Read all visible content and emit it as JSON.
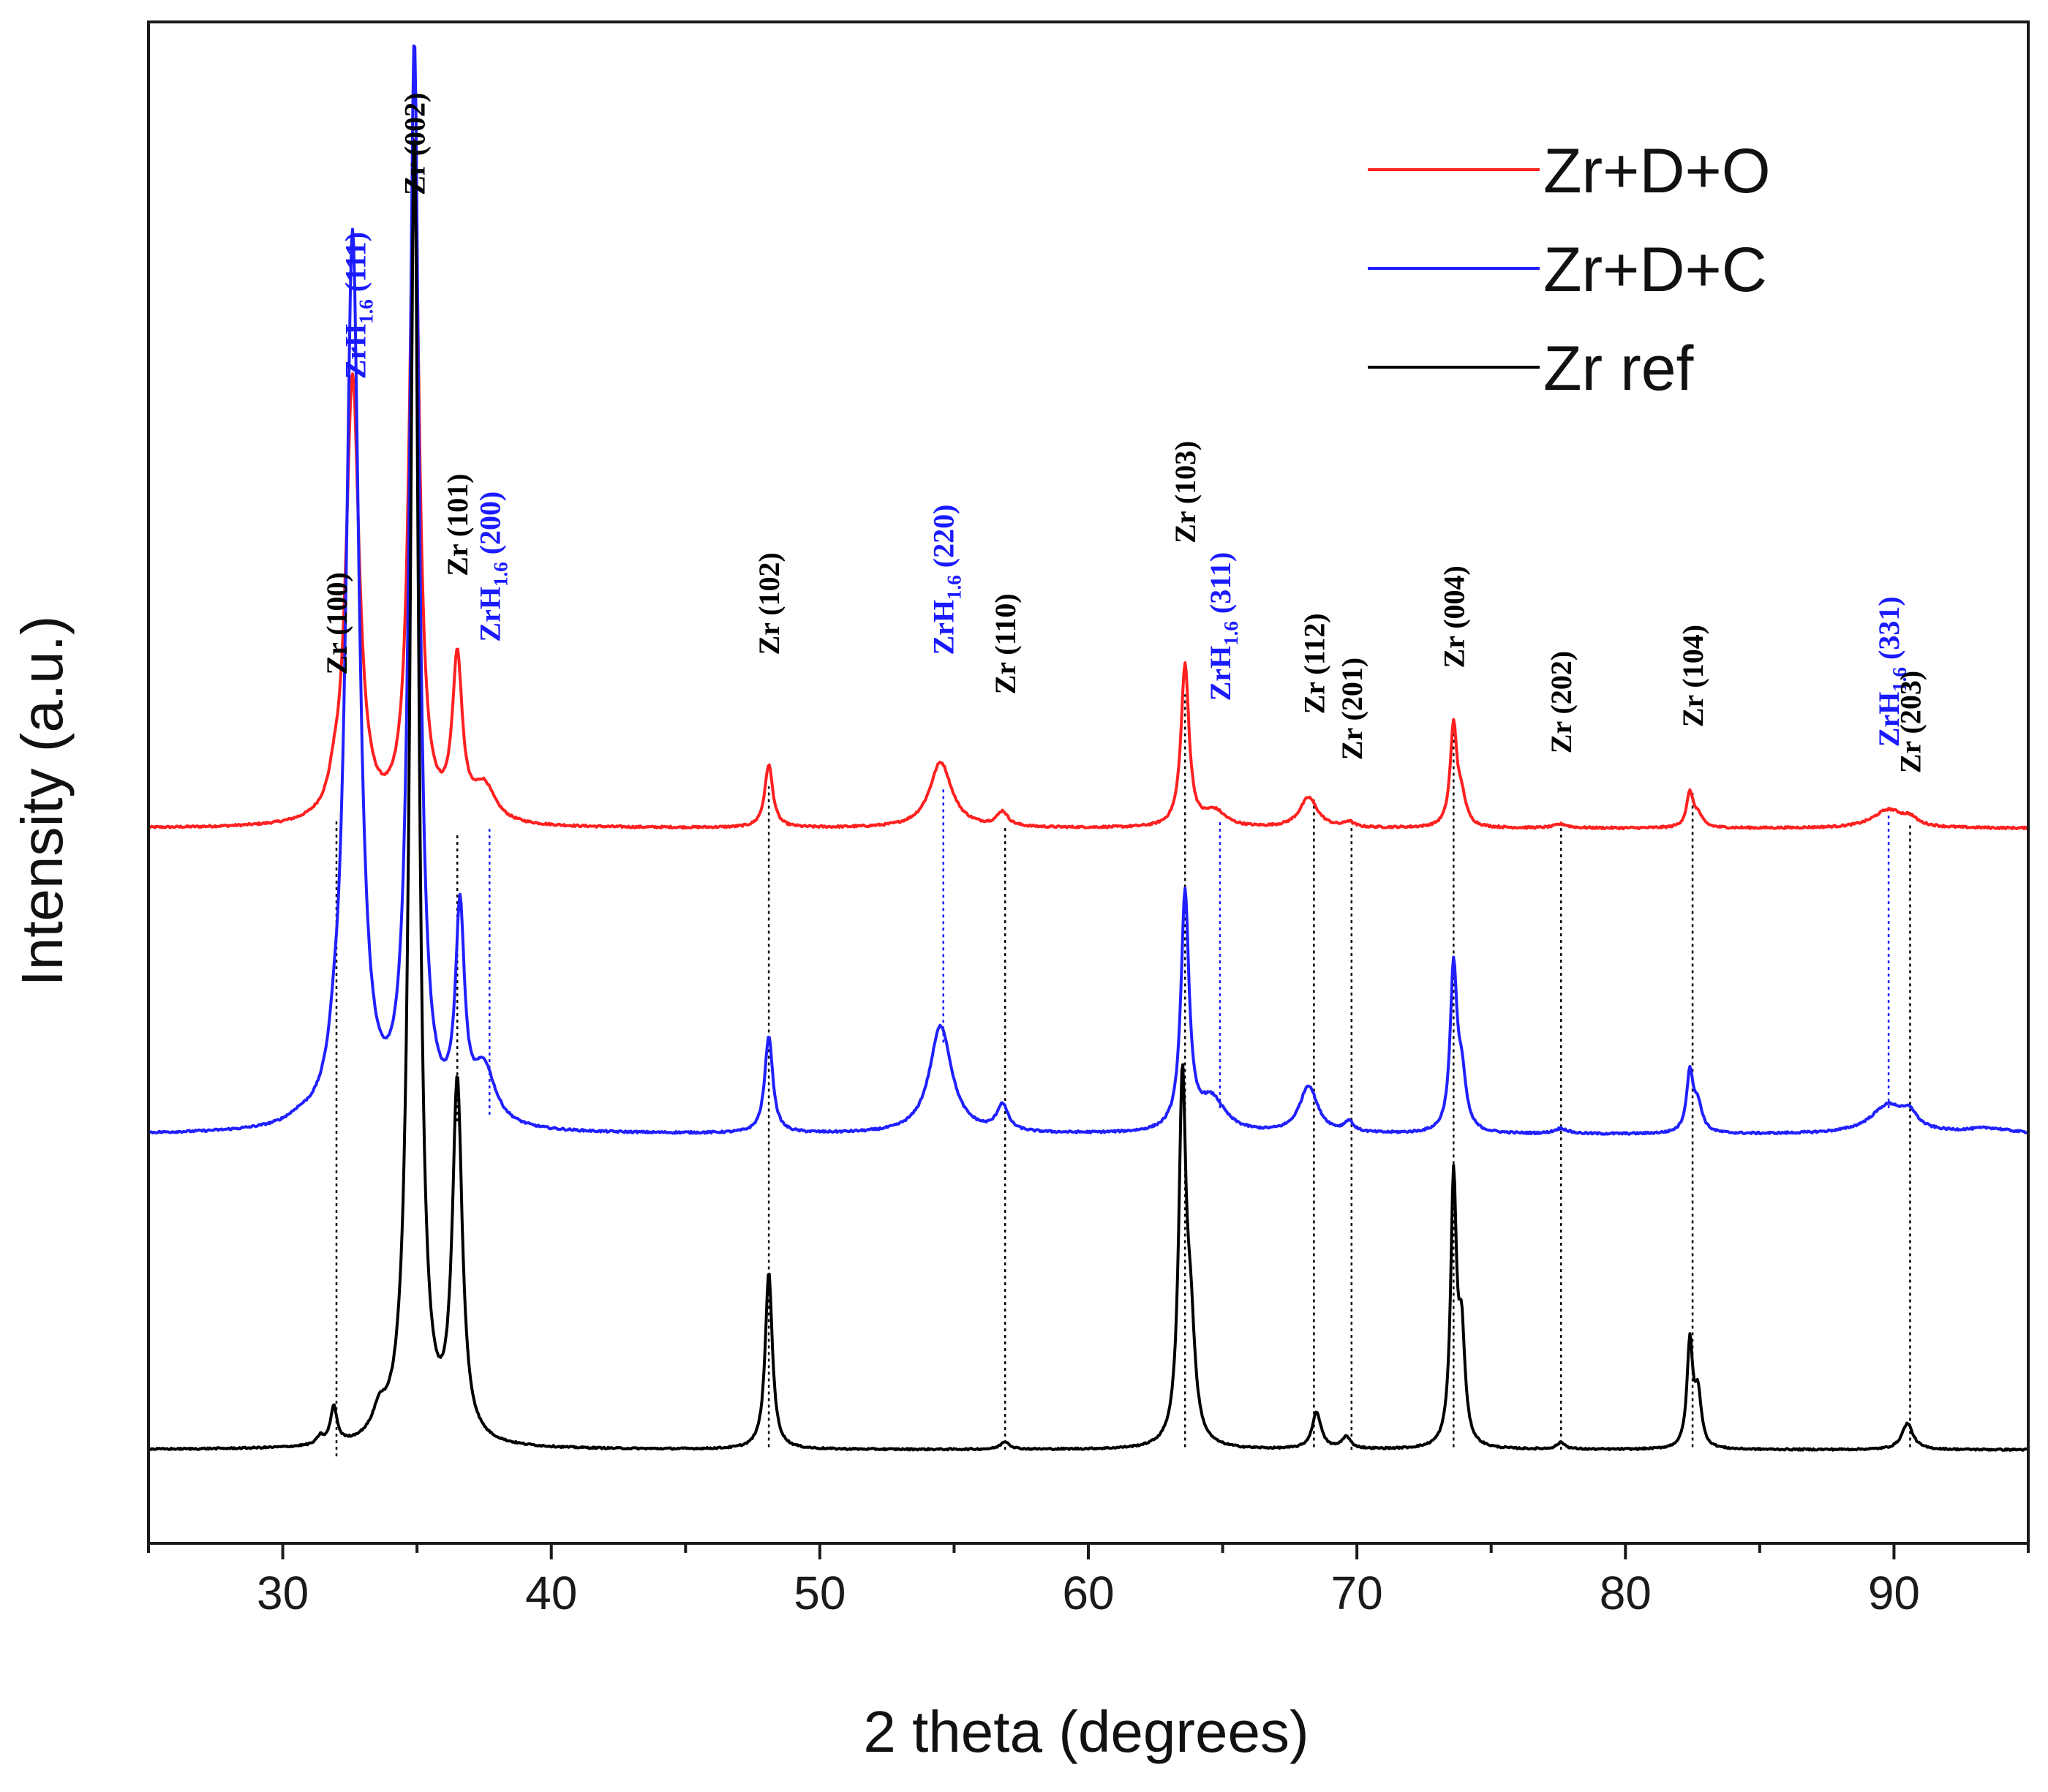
{
  "chart_data": {
    "type": "line",
    "title": "",
    "xlabel": "2 theta (degrees)",
    "ylabel": "Intensity (a.u.)",
    "xlim": [
      25,
      95
    ],
    "ylim": [
      0,
      100
    ],
    "xticks": [
      30,
      40,
      50,
      60,
      70,
      80,
      90
    ],
    "yticks_shown": false,
    "colors": {
      "zr_peak": "#000000",
      "zrh_peak": "#1a1aff"
    },
    "legend": {
      "position": "top-right",
      "entries": [
        {
          "name": "Zr+D+O",
          "color": "#ff2020"
        },
        {
          "name": "Zr+D+C",
          "color": "#2020ff"
        },
        {
          "name": "Zr ref",
          "color": "#000000"
        }
      ]
    },
    "series": [
      {
        "name": "Zr+D+O",
        "color": "#ff2020",
        "baseline": 50.3,
        "noise": 0.15,
        "peaks": [
          [
            31.9,
            1.2,
            0.2
          ],
          [
            32.6,
            34.0,
            0.3
          ],
          [
            34.9,
            52.0,
            0.22
          ],
          [
            36.5,
            12.0,
            0.22
          ],
          [
            37.5,
            2.7,
            0.5
          ],
          [
            48.1,
            4.8,
            0.18
          ],
          [
            54.5,
            5.0,
            0.5
          ],
          [
            56.8,
            1.1,
            0.25
          ],
          [
            63.6,
            12.3,
            0.18
          ],
          [
            64.7,
            1.2,
            0.5
          ],
          [
            68.2,
            2.3,
            0.4
          ],
          [
            69.7,
            0.4,
            0.2
          ],
          [
            73.6,
            7.6,
            0.15
          ],
          [
            73.9,
            2.0,
            0.2
          ],
          [
            77.6,
            0.3,
            0.3
          ],
          [
            82.4,
            2.6,
            0.15
          ],
          [
            82.7,
            0.9,
            0.2
          ],
          [
            89.8,
            1.4,
            0.7
          ],
          [
            90.6,
            0.5,
            0.3
          ]
        ]
      },
      {
        "name": "Zr+D+C",
        "color": "#2020ff",
        "baseline": 27.0,
        "noise": 0.15,
        "peaks": [
          [
            30.6,
            0.4,
            0.5
          ],
          [
            31.9,
            1.5,
            0.2
          ],
          [
            32.6,
            68.0,
            0.3
          ],
          [
            34.9,
            82.0,
            0.22
          ],
          [
            36.6,
            15.5,
            0.2
          ],
          [
            37.5,
            4.2,
            0.5
          ],
          [
            48.1,
            7.4,
            0.18
          ],
          [
            54.5,
            8.2,
            0.5
          ],
          [
            56.8,
            2.0,
            0.25
          ],
          [
            63.6,
            18.0,
            0.18
          ],
          [
            64.6,
            2.5,
            0.6
          ],
          [
            68.2,
            3.6,
            0.4
          ],
          [
            69.7,
            0.8,
            0.2
          ],
          [
            73.6,
            12.2,
            0.15
          ],
          [
            73.9,
            4.0,
            0.2
          ],
          [
            77.6,
            0.4,
            0.3
          ],
          [
            82.4,
            4.5,
            0.15
          ],
          [
            82.7,
            2.0,
            0.2
          ],
          [
            89.8,
            2.2,
            0.8
          ],
          [
            90.6,
            1.0,
            0.3
          ],
          [
            93.5,
            0.4,
            1.0
          ]
        ]
      },
      {
        "name": "Zr ref",
        "color": "#000000",
        "baseline": 3.0,
        "noise": 0.12,
        "peaks": [
          [
            31.4,
            0.6,
            0.15
          ],
          [
            31.9,
            2.8,
            0.15
          ],
          [
            33.6,
            1.8,
            0.3
          ],
          [
            34.9,
            100.0,
            0.2
          ],
          [
            36.5,
            27.0,
            0.22
          ],
          [
            48.1,
            13.5,
            0.16
          ],
          [
            56.9,
            0.6,
            0.2
          ],
          [
            63.5,
            27.0,
            0.16
          ],
          [
            63.8,
            8.0,
            0.2
          ],
          [
            68.5,
            2.8,
            0.2
          ],
          [
            69.6,
            0.9,
            0.2
          ],
          [
            73.6,
            20.0,
            0.13
          ],
          [
            73.9,
            8.0,
            0.15
          ],
          [
            77.6,
            0.5,
            0.2
          ],
          [
            82.4,
            8.0,
            0.13
          ],
          [
            82.7,
            4.0,
            0.15
          ],
          [
            90.5,
            2.0,
            0.25
          ]
        ]
      }
    ],
    "annotations": [
      {
        "text": "Zr (100)",
        "x": 32.0,
        "kind": "zr",
        "label_y": 62.0,
        "line_from_y": 2.5,
        "line_to_y": 51.0
      },
      {
        "main": "ZrH",
        "sub": "1.6",
        "tail": " (111)",
        "x": 32.7,
        "kind": "zrh",
        "label_y": 84.5
      },
      {
        "text": "Zr (002)",
        "x": 34.9,
        "kind": "zr",
        "label_y": 98.5
      },
      {
        "text": "Zr (101)",
        "x": 36.5,
        "kind": "zr",
        "label_y": 69.5,
        "line_from_y": 28.0,
        "line_to_y": 50.0
      },
      {
        "main": "ZrH",
        "sub": "1.6",
        "tail": " (200)",
        "x": 37.7,
        "kind": "zrh",
        "label_y": 64.5,
        "line_from_y": 28.5,
        "line_to_y": 50.5
      },
      {
        "text": "Zr (102)",
        "x": 48.1,
        "kind": "zr",
        "label_y": 63.5,
        "line_from_y": 3.2,
        "line_to_y": 53.5
      },
      {
        "main": "ZrH",
        "sub": "1.6",
        "tail": " (220)",
        "x": 54.6,
        "kind": "zrh",
        "label_y": 63.5,
        "line_from_y": 34.0,
        "line_to_y": 53.5
      },
      {
        "text": "Zr (110)",
        "x": 56.9,
        "kind": "zr",
        "label_y": 60.5,
        "line_from_y": 3.0,
        "line_to_y": 50.5
      },
      {
        "text": "Zr (103)",
        "x": 63.6,
        "kind": "zr",
        "label_y": 72.0,
        "line_from_y": 3.2,
        "line_to_y": 60.5
      },
      {
        "main": "ZrH",
        "sub": "1.6",
        "tail": " (311)",
        "x": 64.9,
        "kind": "zrh",
        "label_y": 60.0,
        "line_from_y": 29.0,
        "line_to_y": 51.0
      },
      {
        "text": "Zr (112)",
        "x": 68.4,
        "kind": "zr",
        "label_y": 59.0,
        "line_from_y": 3.2,
        "line_to_y": 52.5
      },
      {
        "text": "Zr (201)",
        "x": 69.8,
        "kind": "zr",
        "label_y": 55.5,
        "line_from_y": 3.0,
        "line_to_y": 50.6
      },
      {
        "text": "Zr (004)",
        "x": 73.6,
        "kind": "zr",
        "label_y": 62.5,
        "line_from_y": 3.2,
        "line_to_y": 58.0
      },
      {
        "text": "Zr (202)",
        "x": 77.6,
        "kind": "zr",
        "label_y": 56.0,
        "line_from_y": 3.0,
        "line_to_y": 50.6
      },
      {
        "text": "Zr (104)",
        "x": 82.5,
        "kind": "zr",
        "label_y": 58.0,
        "line_from_y": 3.2,
        "line_to_y": 53.0
      },
      {
        "main": "ZrH",
        "sub": "1.6",
        "tail": " (331)",
        "x": 89.8,
        "kind": "zrh",
        "label_y": 56.5,
        "line_from_y": 29.0,
        "line_to_y": 51.5
      },
      {
        "text": "Zr (203)",
        "x": 90.6,
        "kind": "zr",
        "label_y": 54.5,
        "line_from_y": 3.2,
        "line_to_y": 50.8
      }
    ]
  }
}
